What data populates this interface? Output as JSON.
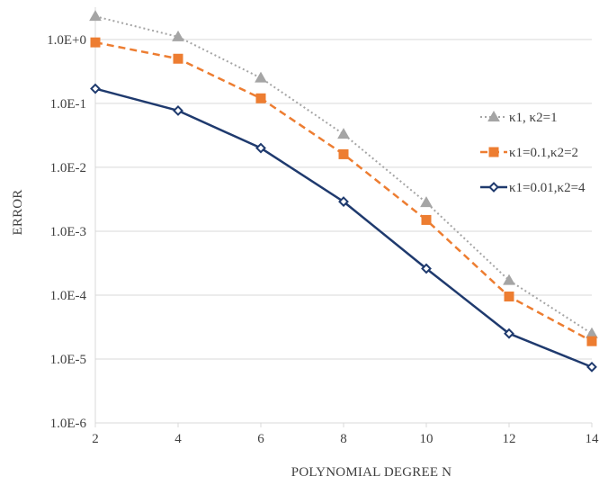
{
  "chart_data": {
    "type": "line",
    "title": "",
    "xlabel": "POLYNOMIAL DEGREE N",
    "ylabel": "ERROR",
    "x": [
      2,
      4,
      6,
      8,
      10,
      12,
      14
    ],
    "x_ticks": [
      "2",
      "4",
      "6",
      "8",
      "10",
      "12",
      "14"
    ],
    "xlim": [
      2,
      14
    ],
    "y_scale": "log",
    "ylim": [
      1e-06,
      3.2
    ],
    "y_ticks": [
      {
        "value": 1,
        "label": "1.0E+0"
      },
      {
        "value": 0.1,
        "label": "1.0E-1"
      },
      {
        "value": 0.01,
        "label": "1.0E-2"
      },
      {
        "value": 0.001,
        "label": "1.0E-3"
      },
      {
        "value": 0.0001,
        "label": "1.0E-4"
      },
      {
        "value": 1e-05,
        "label": "1.0E-5"
      },
      {
        "value": 1e-06,
        "label": "1.0E-6"
      }
    ],
    "grid": "horizontal",
    "legend_position": "right",
    "series": [
      {
        "name": "κ1, κ2=1",
        "values": [
          2.3,
          1.1,
          0.25,
          0.033,
          0.0028,
          0.00017,
          2.5e-05
        ],
        "color": "#a5a5a5",
        "line_style": "dotted",
        "marker": "triangle"
      },
      {
        "name": "κ1=0.1,κ2=2",
        "values": [
          0.9,
          0.5,
          0.12,
          0.016,
          0.0015,
          9.5e-05,
          1.9e-05
        ],
        "color": "#ed7d31",
        "line_style": "dashed",
        "marker": "square"
      },
      {
        "name": "κ1=0.01,κ2=4",
        "values": [
          0.17,
          0.077,
          0.02,
          0.0029,
          0.00026,
          2.5e-05,
          7.5e-06
        ],
        "color": "#1f3a6e",
        "line_style": "solid",
        "marker": "diamond"
      }
    ]
  }
}
